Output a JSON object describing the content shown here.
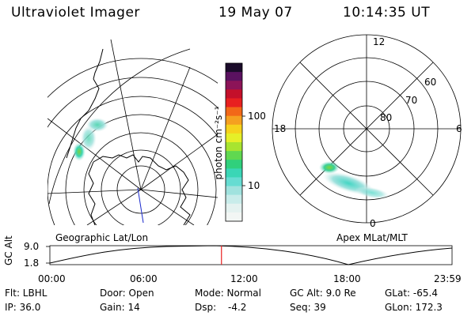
{
  "header": {
    "title": "Ultraviolet Imager",
    "date": "19 May 07",
    "time": "10:14:35 UT"
  },
  "colorbar": {
    "label": "photon cm⁻²s⁻¹",
    "ticks": [
      "100",
      "10"
    ],
    "colors": [
      "#1a0b2a",
      "#5a1260",
      "#8c1458",
      "#c4102a",
      "#e82020",
      "#f26818",
      "#f5a020",
      "#f6d21c",
      "#e6ef28",
      "#a8e430",
      "#60d850",
      "#30d07c",
      "#3ad6b6",
      "#66dcd2",
      "#a0e2de",
      "#c8ecea",
      "#e4f2f0",
      "#f2f6f4"
    ]
  },
  "left_map": {
    "label": "Geographic Lat/Lon"
  },
  "right_map": {
    "label": "Apex  MLat/MLT",
    "mlt_labels": [
      "12",
      "18",
      "6",
      "0"
    ],
    "lat_labels": [
      "60",
      "70",
      "80"
    ]
  },
  "timeline": {
    "y_axis_label": "GC Alt",
    "y_ticks": [
      "9.0",
      "1.8"
    ],
    "x_ticks": [
      "00:00",
      "06:00",
      "12:00",
      "18:00",
      "23:59"
    ],
    "current_time_hours": 10.24,
    "marker_color": "#e82020"
  },
  "info": {
    "flt": "Flt: LBHL",
    "ip": "IP: 36.0",
    "door": "Door: Open",
    "gain": "Gain: 14",
    "mode": "Mode: Normal",
    "dsp_label": "Dsp:",
    "dsp_value": "-4.2",
    "gcalt": "GC Alt: 9.0 Re",
    "seq": "Seq: 39",
    "glat": "GLat: -65.4",
    "glon": "GLon: 172.3"
  }
}
